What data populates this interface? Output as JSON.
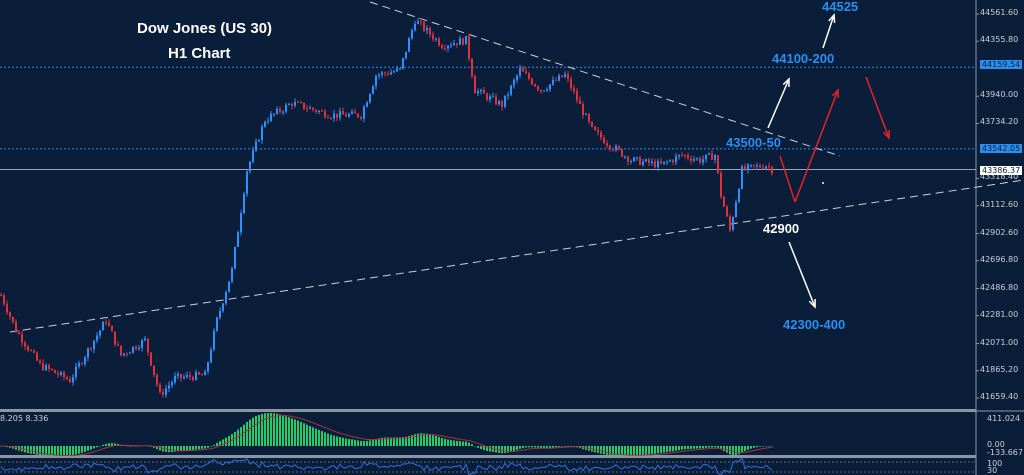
{
  "title": {
    "line1": "Dow Jones (US 30)",
    "line2": "H1 Chart"
  },
  "annotations": {
    "t1": "44525",
    "t2": "44100-200",
    "t3": "43500-50",
    "s1": "42900",
    "s2": "42300-400"
  },
  "colors": {
    "background": "#0b1e39",
    "bull": "#2f8fff",
    "bear": "#e0303a",
    "label": "#2a8ef0",
    "arrow_red": "#e8202a",
    "macd": "#22cc66",
    "signal": "#b03040",
    "rsi": "#2f6fe0"
  },
  "chart_data": {
    "type": "candlestick",
    "price_axis_ticks": [
      "44561.60",
      "44355.80",
      "43940.00",
      "43734.20",
      "43318.40",
      "43112.60",
      "42902.60",
      "42696.80",
      "42486.80",
      "42281.00",
      "42071.00",
      "41865.20",
      "41659.40"
    ],
    "ylim": [
      41659.4,
      44561.6
    ],
    "price_levels": [
      {
        "price": 44159.54,
        "label": "44159.54",
        "style": "dotted"
      },
      {
        "price": 43542.05,
        "label": "43542.05",
        "style": "dotted"
      },
      {
        "price": 43386.37,
        "label": "43386.37",
        "style": "current"
      }
    ],
    "close_path": [
      [
        0,
        42437
      ],
      [
        5,
        42172
      ],
      [
        13,
        41907
      ],
      [
        23,
        41794
      ],
      [
        35,
        42248
      ],
      [
        40,
        41983
      ],
      [
        48,
        42096
      ],
      [
        53,
        41680
      ],
      [
        58,
        41809
      ],
      [
        68,
        41832
      ],
      [
        72,
        42248
      ],
      [
        77,
        42626
      ],
      [
        82,
        43382
      ],
      [
        88,
        43760
      ],
      [
        97,
        43889
      ],
      [
        110,
        43798
      ],
      [
        120,
        43798
      ],
      [
        125,
        44100
      ],
      [
        133,
        44138
      ],
      [
        138,
        44516
      ],
      [
        147,
        44327
      ],
      [
        155,
        44365
      ],
      [
        158,
        43987
      ],
      [
        167,
        43874
      ],
      [
        173,
        44138
      ],
      [
        180,
        43987
      ],
      [
        188,
        44100
      ],
      [
        197,
        43685
      ],
      [
        203,
        43571
      ],
      [
        210,
        43458
      ],
      [
        220,
        43420
      ],
      [
        227,
        43496
      ],
      [
        233,
        43458
      ],
      [
        238,
        43496
      ],
      [
        240,
        43193
      ],
      [
        243,
        42928
      ],
      [
        247,
        43382
      ],
      [
        255,
        43420
      ],
      [
        257,
        43386
      ]
    ],
    "indicator1": {
      "labels": [
        "8.205 8.336"
      ],
      "axis": [
        "411.024",
        "0.00",
        "-133.667"
      ]
    },
    "indicator2": {
      "axis": [
        "100",
        "30"
      ]
    }
  }
}
